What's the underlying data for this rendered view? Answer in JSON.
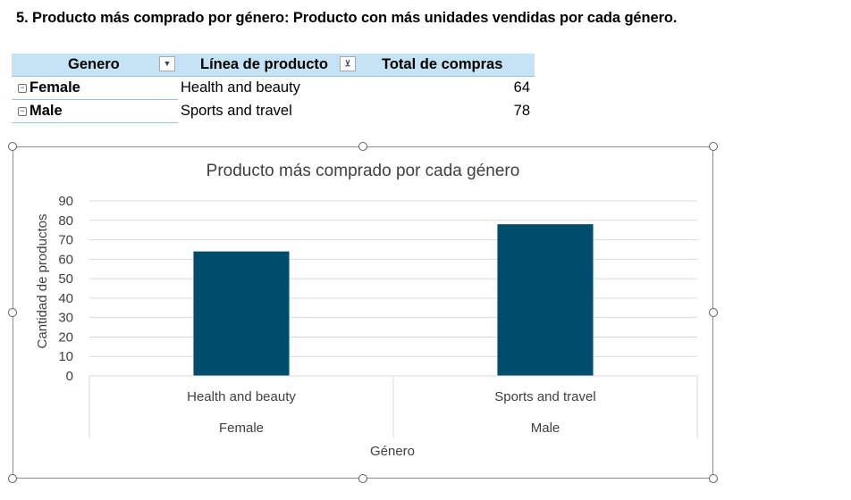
{
  "heading": "5. Producto más comprado por género: Producto con más unidades vendidas por cada género.",
  "pivot": {
    "headers": {
      "genero": "Genero",
      "linea": "Línea de producto",
      "total": "Total de compras"
    },
    "rows": [
      {
        "genero": "Female",
        "linea": "Health and beauty",
        "total": "64"
      },
      {
        "genero": "Male",
        "linea": "Sports and travel",
        "total": "78"
      }
    ],
    "dropdown_icon": "chevron-down-icon",
    "filter_icon": "filter-icon",
    "collapse_icon": "minus-icon"
  },
  "chart_data": {
    "type": "bar",
    "title": "Producto más comprado por cada género",
    "xlabel": "Género",
    "ylabel": "Cantidad de productos",
    "ylim": [
      0,
      90
    ],
    "yticks": [
      0,
      10,
      20,
      30,
      40,
      50,
      60,
      70,
      80,
      90
    ],
    "grid": true,
    "bar_color": "#004c6d",
    "groups": [
      {
        "group": "Female",
        "category": "Health and beauty",
        "value": 64
      },
      {
        "group": "Male",
        "category": "Sports and travel",
        "value": 78
      }
    ]
  }
}
